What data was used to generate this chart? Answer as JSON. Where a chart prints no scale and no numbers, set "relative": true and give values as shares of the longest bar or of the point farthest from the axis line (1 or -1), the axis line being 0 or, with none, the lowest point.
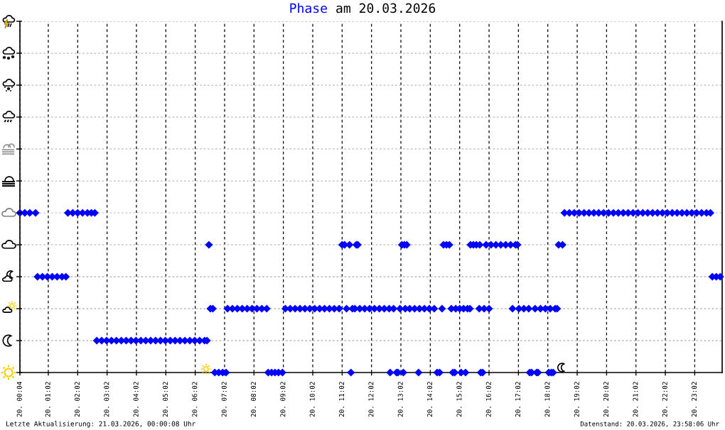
{
  "chart_data": {
    "type": "scatter",
    "title": "Phase am 20.03.2026",
    "annotations": [
      "Letzte Aktualisierung: 21.03.2026, 00:00:08 Uhr",
      "Datenstand: 20.03.2026, 23:58:06 Uhr"
    ],
    "color": "#0000ff",
    "marker": "diamond",
    "grid": "x",
    "tick_labels": "x",
    "relative": true,
    "xlim": [
      "2026-03-20T00:04",
      "2026-03-20T23:58"
    ],
    "xticks": [
      {
        "value": "2026-03-20T00:04",
        "label": "20. 00:04"
      },
      {
        "value": "2026-03-20T01:02",
        "label": "20. 01:02"
      },
      {
        "value": "2026-03-20T02:02",
        "label": "20. 02:02"
      },
      {
        "value": "2026-03-20T03:02",
        "label": "20. 03:02"
      },
      {
        "value": "2026-03-20T04:02",
        "label": "20. 04:02"
      },
      {
        "value": "2026-03-20T05:02",
        "label": "20. 05:02"
      },
      {
        "value": "2026-03-20T06:02",
        "label": "20. 06:02"
      },
      {
        "value": "2026-03-20T07:02",
        "label": "20. 07:02"
      },
      {
        "value": "2026-03-20T08:02",
        "label": "20. 08:02"
      },
      {
        "value": "2026-03-20T09:02",
        "label": "20. 09:02"
      },
      {
        "value": "2026-03-20T10:02",
        "label": "20. 10:02"
      },
      {
        "value": "2026-03-20T11:02",
        "label": "20. 11:02"
      },
      {
        "value": "2026-03-20T12:02",
        "label": "20. 12:02"
      },
      {
        "value": "2026-03-20T13:02",
        "label": "20. 13:02"
      },
      {
        "value": "2026-03-20T14:02",
        "label": "20. 14:02"
      },
      {
        "value": "2026-03-20T15:02",
        "label": "20. 15:02"
      },
      {
        "value": "2026-03-20T16:02",
        "label": "20. 16:02"
      },
      {
        "value": "2026-03-20T17:02",
        "label": "20. 17:02"
      },
      {
        "value": "2026-03-20T18:02",
        "label": "20. 18:02"
      },
      {
        "value": "2026-03-20T19:02",
        "label": "20. 19:02"
      },
      {
        "value": "2026-03-20T20:02",
        "label": "20. 20:02"
      },
      {
        "value": "2026-03-20T21:02",
        "label": "20. 21:02"
      },
      {
        "value": "2026-03-20T22:02",
        "label": "20. 22:02"
      },
      {
        "value": "2026-03-20T23:02",
        "label": "20. 23:02"
      }
    ],
    "ref_lines": [
      {
        "axis": "y",
        "value": 0.2,
        "color": "#bbbbbb",
        "line_style": "dashed"
      },
      {
        "axis": "y",
        "value": 0.4,
        "color": "#bbbbbb",
        "line_style": "dashed"
      },
      {
        "axis": "y",
        "value": 0.6,
        "color": "#bbbbbb",
        "line_style": "dashed"
      },
      {
        "axis": "y",
        "value": 0.8,
        "color": "#bbbbbb",
        "line_style": "dashed"
      },
      {
        "axis": "y",
        "value": 1,
        "color": "#bbbbbb",
        "line_style": "dashed"
      },
      {
        "axis": "y",
        "value": 1.2,
        "color": "#bbbbbb",
        "line_style": "dashed"
      },
      {
        "axis": "y",
        "value": 1.4,
        "color": "#bbbbbb",
        "line_style": "dashed"
      },
      {
        "axis": "y",
        "value": 1.6,
        "color": "#bbbbbb",
        "line_style": "dashed"
      },
      {
        "axis": "y",
        "value": 1.8,
        "color": "#bbbbbb",
        "line_style": "dashed"
      },
      {
        "axis": "y",
        "value": 2,
        "color": "#bbbbbb",
        "line_style": "dashed"
      },
      {
        "axis": "y",
        "value": 2.2,
        "color": "#bbbbbb",
        "line_style": "dashed"
      }
    ],
    "x": [
      "2026-03-20T00:04",
      "2026-03-20T00:14",
      "2026-03-20T00:24",
      "2026-03-20T00:36",
      "2026-03-20T00:40",
      "2026-03-20T00:50",
      "2026-03-20T01:00",
      "2026-03-20T01:10",
      "2026-03-20T01:20",
      "2026-03-20T01:30",
      "2026-03-20T01:38",
      "2026-03-20T01:42",
      "2026-03-20T01:52",
      "2026-03-20T02:02",
      "2026-03-20T02:12",
      "2026-03-20T02:22",
      "2026-03-20T02:30",
      "2026-03-20T02:37",
      "2026-03-20T02:41",
      "2026-03-20T02:51",
      "2026-03-20T03:01",
      "2026-03-20T03:11",
      "2026-03-20T03:21",
      "2026-03-20T03:31",
      "2026-03-20T03:41",
      "2026-03-20T03:51",
      "2026-03-20T04:01",
      "2026-03-20T04:11",
      "2026-03-20T04:21",
      "2026-03-20T04:31",
      "2026-03-20T04:41",
      "2026-03-20T04:51",
      "2026-03-20T05:01",
      "2026-03-20T05:11",
      "2026-03-20T05:21",
      "2026-03-20T05:31",
      "2026-03-20T05:41",
      "2026-03-20T05:51",
      "2026-03-20T06:01",
      "2026-03-20T06:11",
      "2026-03-20T06:21",
      "2026-03-20T06:26",
      "2026-03-20T06:30",
      "2026-03-20T06:33",
      "2026-03-20T06:38",
      "2026-03-20T06:42",
      "2026-03-20T06:50",
      "2026-03-20T06:58",
      "2026-03-20T07:05",
      "2026-03-20T07:08",
      "2026-03-20T07:18",
      "2026-03-20T07:28",
      "2026-03-20T07:38",
      "2026-03-20T07:48",
      "2026-03-20T07:58",
      "2026-03-20T08:08",
      "2026-03-20T08:18",
      "2026-03-20T08:28",
      "2026-03-20T08:31",
      "2026-03-20T08:38",
      "2026-03-20T08:45",
      "2026-03-20T08:52",
      "2026-03-20T09:00",
      "2026-03-20T09:06",
      "2026-03-20T09:16",
      "2026-03-20T09:26",
      "2026-03-20T09:36",
      "2026-03-20T09:46",
      "2026-03-20T09:56",
      "2026-03-20T10:06",
      "2026-03-20T10:16",
      "2026-03-20T10:26",
      "2026-03-20T10:36",
      "2026-03-20T10:46",
      "2026-03-20T10:56",
      "2026-03-20T11:02",
      "2026-03-20T11:07",
      "2026-03-20T11:11",
      "2026-03-20T11:17",
      "2026-03-20T11:20",
      "2026-03-20T11:23",
      "2026-03-20T11:28",
      "2026-03-20T11:31",
      "2026-03-20T11:34",
      "2026-03-20T11:38",
      "2026-03-20T11:48",
      "2026-03-20T11:58",
      "2026-03-20T12:08",
      "2026-03-20T12:18",
      "2026-03-20T12:28",
      "2026-03-20T12:38",
      "2026-03-20T12:40",
      "2026-03-20T12:47",
      "2026-03-20T12:53",
      "2026-03-20T12:56",
      "2026-03-20T13:00",
      "2026-03-20T13:04",
      "2026-03-20T13:07",
      "2026-03-20T13:09",
      "2026-03-20T13:11",
      "2026-03-20T13:14",
      "2026-03-20T13:20",
      "2026-03-20T13:30",
      "2026-03-20T13:38",
      "2026-03-20T13:40",
      "2026-03-20T13:50",
      "2026-03-20T14:00",
      "2026-03-20T14:10",
      "2026-03-20T14:16",
      "2026-03-20T14:21",
      "2026-03-20T14:26",
      "2026-03-20T14:29",
      "2026-03-20T14:35",
      "2026-03-20T14:41",
      "2026-03-20T14:45",
      "2026-03-20T14:48",
      "2026-03-20T14:52",
      "2026-03-20T14:54",
      "2026-03-20T15:02",
      "2026-03-20T15:05",
      "2026-03-20T15:10",
      "2026-03-20T15:14",
      "2026-03-20T15:18",
      "2026-03-20T15:23",
      "2026-03-20T15:24",
      "2026-03-20T15:30",
      "2026-03-20T15:36",
      "2026-03-20T15:42",
      "2026-03-20T15:43",
      "2026-03-20T15:45",
      "2026-03-20T15:49",
      "2026-03-20T15:52",
      "2026-03-20T15:56",
      "2026-03-20T16:02",
      "2026-03-20T16:06",
      "2026-03-20T16:16",
      "2026-03-20T16:26",
      "2026-03-20T16:36",
      "2026-03-20T16:46",
      "2026-03-20T16:50",
      "2026-03-20T16:56",
      "2026-03-20T17:00",
      "2026-03-20T17:03",
      "2026-03-20T17:13",
      "2026-03-20T17:23",
      "2026-03-20T17:25",
      "2026-03-20T17:29",
      "2026-03-20T17:36",
      "2026-03-20T17:39",
      "2026-03-20T17:42",
      "2026-03-20T17:47",
      "2026-03-20T17:57",
      "2026-03-20T18:04",
      "2026-03-20T18:07",
      "2026-03-20T18:09",
      "2026-03-20T18:13",
      "2026-03-20T18:17",
      "2026-03-20T18:21",
      "2026-03-20T18:24",
      "2026-03-20T18:32",
      "2026-03-20T18:36",
      "2026-03-20T18:46",
      "2026-03-20T18:56",
      "2026-03-20T19:06",
      "2026-03-20T19:16",
      "2026-03-20T19:26",
      "2026-03-20T19:36",
      "2026-03-20T19:46",
      "2026-03-20T19:56",
      "2026-03-20T20:06",
      "2026-03-20T20:16",
      "2026-03-20T20:26",
      "2026-03-20T20:36",
      "2026-03-20T20:46",
      "2026-03-20T20:56",
      "2026-03-20T21:06",
      "2026-03-20T21:16",
      "2026-03-20T21:26",
      "2026-03-20T21:36",
      "2026-03-20T21:46",
      "2026-03-20T21:56",
      "2026-03-20T22:06",
      "2026-03-20T22:16",
      "2026-03-20T22:26",
      "2026-03-20T22:36",
      "2026-03-20T22:46",
      "2026-03-20T22:56",
      "2026-03-20T23:06",
      "2026-03-20T23:16",
      "2026-03-20T23:26",
      "2026-03-20T23:34",
      "2026-03-20T23:38",
      "2026-03-20T23:46",
      "2026-03-20T23:54"
    ],
    "values": [
      1,
      1,
      1,
      1,
      0.6,
      0.6,
      0.6,
      0.6,
      0.6,
      0.6,
      0.6,
      1,
      1,
      1,
      1,
      1,
      1,
      1,
      0.2,
      0.2,
      0.2,
      0.2,
      0.2,
      0.2,
      0.2,
      0.2,
      0.2,
      0.2,
      0.2,
      0.2,
      0.2,
      0.2,
      0.2,
      0.2,
      0.2,
      0.2,
      0.2,
      0.2,
      0.2,
      0.2,
      0.2,
      0.2,
      0.8,
      0.4,
      0.4,
      0,
      0,
      0,
      0,
      0.4,
      0.4,
      0.4,
      0.4,
      0.4,
      0.4,
      0.4,
      0.4,
      0.4,
      0,
      0,
      0,
      0,
      0,
      0.4,
      0.4,
      0.4,
      0.4,
      0.4,
      0.4,
      0.4,
      0.4,
      0.4,
      0.4,
      0.4,
      0.4,
      0.8,
      0.8,
      0.4,
      0.8,
      0,
      0.4,
      0.4,
      0.8,
      0.8,
      0.4,
      0.4,
      0.4,
      0.4,
      0.4,
      0.4,
      0.4,
      0,
      0.4,
      0,
      0,
      0.4,
      0.8,
      0,
      0.8,
      0.4,
      0.8,
      0.4,
      0.4,
      0,
      0.4,
      0.4,
      0.4,
      0.4,
      0,
      0,
      0.4,
      0.8,
      0.8,
      0.8,
      0.4,
      0,
      0,
      0.4,
      0.4,
      0,
      0.4,
      0,
      0.4,
      0.4,
      0.8,
      0.8,
      0.8,
      0.4,
      0.8,
      0,
      0,
      0.4,
      0.8,
      0.4,
      0.8,
      0.8,
      0.8,
      0.8,
      0.8,
      0.4,
      0.8,
      0.8,
      0.4,
      0.4,
      0.4,
      0,
      0,
      0.4,
      0,
      0,
      0.4,
      0.4,
      0,
      0.4,
      0,
      0,
      0.4,
      0.4,
      0.8,
      0.8,
      1,
      1,
      1,
      1,
      1,
      1,
      1,
      1,
      1,
      1,
      1,
      1,
      1,
      1,
      1,
      1,
      1,
      1,
      1,
      1,
      1,
      1,
      1,
      1,
      1,
      1,
      1,
      1,
      1,
      1,
      1,
      0.6,
      0.6,
      0.6
    ]
  }
}
